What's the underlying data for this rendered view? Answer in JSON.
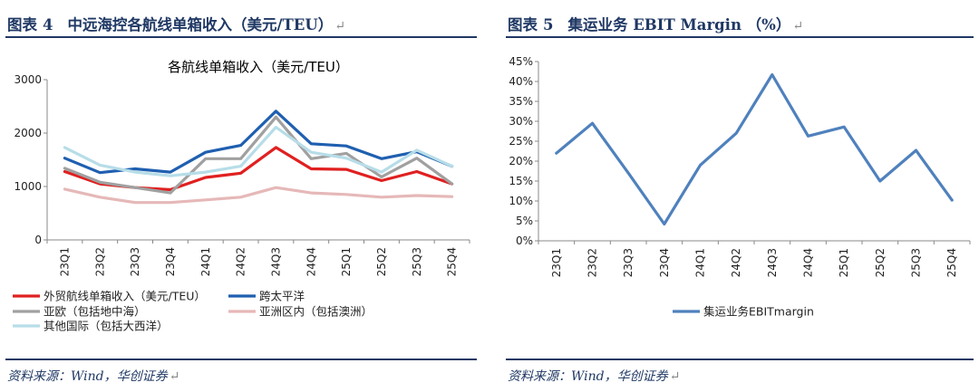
{
  "figures": [
    {
      "caption_label": "图表",
      "caption_number": "4",
      "caption_text": "中远海控各航线单箱收入（美元/TEU）",
      "source": "资料来源：Wind，华创证券",
      "chart_data": {
        "type": "line",
        "title": "各航线单箱收入（美元/TEU）",
        "xlabel": "",
        "ylabel": "",
        "ylim": [
          0,
          3000
        ],
        "yticks": [
          "0",
          "1000",
          "2000",
          "3000"
        ],
        "grid": false,
        "legend_position": "bottom",
        "categories": [
          "23Q1",
          "23Q2",
          "23Q3",
          "23Q4",
          "24Q1",
          "24Q2",
          "24Q3",
          "24Q4",
          "25Q1",
          "25Q2",
          "25Q3",
          "25Q4"
        ],
        "series": [
          {
            "name": "外贸航线单箱收入（美元/TEU）",
            "color": "#e02020",
            "values": [
              1280,
              1050,
              980,
              940,
              1170,
              1250,
              1730,
              1330,
              1320,
              1110,
              1280,
              1050
            ]
          },
          {
            "name": "跨太平洋",
            "color": "#1f5fb0",
            "values": [
              1530,
              1260,
              1330,
              1270,
              1640,
              1770,
              2410,
              1800,
              1760,
              1520,
              1650,
              1380
            ]
          },
          {
            "name": "亚欧（包括地中海）",
            "color": "#a0a0a0",
            "values": [
              1340,
              1080,
              980,
              880,
              1520,
              1520,
              2300,
              1520,
              1620,
              1180,
              1530,
              1050
            ]
          },
          {
            "name": "亚洲区内（包括澳洲）",
            "color": "#e6b8b8",
            "values": [
              950,
              800,
              700,
              700,
              750,
              800,
              980,
              880,
              850,
              800,
              830,
              810
            ]
          },
          {
            "name": "其他国际（包括大西洋）",
            "color": "#b7dde8",
            "values": [
              1730,
              1400,
              1270,
              1200,
              1270,
              1380,
              2110,
              1640,
              1530,
              1270,
              1680,
              1380
            ]
          }
        ]
      }
    },
    {
      "caption_label": "图表",
      "caption_number": "5",
      "caption_text": "集运业务 EBIT Margin （%）",
      "source": "资料来源：Wind，华创证券",
      "chart_data": {
        "type": "line",
        "title": "",
        "xlabel": "",
        "ylabel": "",
        "ylim": [
          0,
          45
        ],
        "yticks": [
          "0%",
          "5%",
          "10%",
          "15%",
          "20%",
          "25%",
          "30%",
          "35%",
          "40%",
          "45%"
        ],
        "grid": false,
        "legend_position": "bottom",
        "categories": [
          "23Q1",
          "23Q2",
          "23Q3",
          "23Q4",
          "24Q1",
          "24Q2",
          "24Q3",
          "24Q4",
          "25Q1",
          "25Q2",
          "25Q3",
          "25Q4"
        ],
        "series": [
          {
            "name": "集运业务EBITmargin",
            "color": "#4f81bd",
            "values": [
              22.0,
              29.5,
              17.0,
              4.2,
              19.0,
              27.0,
              41.7,
              26.3,
              28.6,
              15.0,
              22.7,
              10.2
            ]
          }
        ]
      }
    }
  ]
}
